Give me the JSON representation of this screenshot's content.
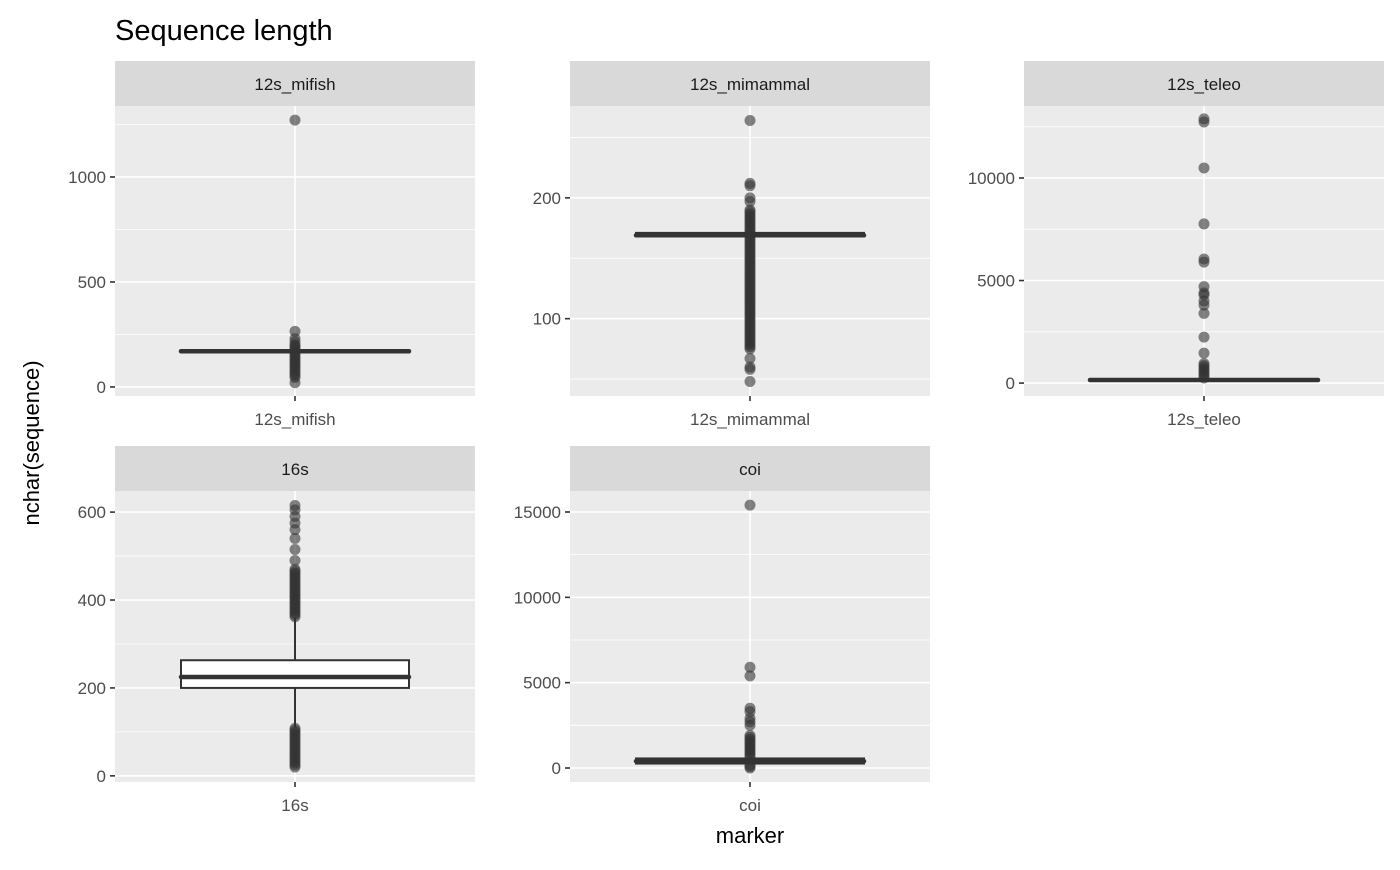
{
  "chart_data": {
    "type": "boxplot",
    "title": "Sequence length",
    "xlabel": "marker",
    "ylabel": "nchar(sequence)",
    "facet_scales": "free",
    "grid": true,
    "colors": {
      "panel": "#ebebeb",
      "strip": "#d9d9d9",
      "grid": "#ffffff",
      "box": "#333333",
      "point": "#333333"
    },
    "panels": [
      {
        "strip": "12s_mifish",
        "category": "12s_mifish",
        "ylim": [
          -43,
          1338
        ],
        "y_ticks": [
          0,
          500,
          1000
        ],
        "y_minor": [
          250,
          750,
          1250
        ],
        "q1": 165,
        "median": 170,
        "q3": 173,
        "whisker_low": 160,
        "whisker_high": 180,
        "outliers": [
          1271,
          265,
          230,
          215,
          200,
          20
        ],
        "outlier_ranges": [
          [
            45,
            195
          ]
        ]
      },
      {
        "strip": "12s_mimammal",
        "category": "12s_mimammal",
        "ylim": [
          36,
          276
        ],
        "y_ticks": [
          100,
          200
        ],
        "y_minor": [
          50,
          150,
          250
        ],
        "q1": 168,
        "median": 169,
        "q3": 171,
        "whisker_low": 166,
        "whisker_high": 172,
        "outliers": [
          264,
          212,
          210,
          200,
          197,
          67,
          60,
          58,
          48
        ],
        "outlier_ranges": [
          [
            75,
            190
          ]
        ]
      },
      {
        "strip": "12s_teleo",
        "category": "12s_teleo",
        "ylim": [
          -630,
          13510
        ],
        "y_ticks": [
          0,
          5000,
          10000
        ],
        "y_minor": [
          2500,
          7500,
          12500
        ],
        "q1": 120,
        "median": 150,
        "q3": 170,
        "whisker_low": 90,
        "whisker_high": 230,
        "outliers": [
          12880,
          12730,
          10490,
          7760,
          6050,
          5900,
          4700,
          4400,
          4300,
          4000,
          3800,
          3400,
          2240,
          1460
        ],
        "outlier_ranges": [
          [
            250,
            950
          ]
        ]
      },
      {
        "strip": "16s",
        "category": "16s",
        "ylim": [
          -14,
          648
        ],
        "y_ticks": [
          0,
          200,
          400,
          600
        ],
        "y_minor": [
          100,
          300,
          500
        ],
        "q1": 200,
        "median": 225,
        "q3": 263,
        "whisker_low": 110,
        "whisker_high": 360,
        "outliers": [
          615,
          605,
          590,
          575,
          560,
          540,
          515,
          490
        ],
        "outlier_ranges": [
          [
            362,
            470
          ],
          [
            20,
            108
          ]
        ]
      },
      {
        "strip": "coi",
        "category": "coi",
        "ylim": [
          -820,
          16230
        ],
        "y_ticks": [
          0,
          5000,
          10000,
          15000
        ],
        "y_minor": [
          2500,
          7500,
          12500
        ],
        "q1": 260,
        "median": 400,
        "q3": 560,
        "whisker_low": 200,
        "whisker_high": 600,
        "outliers": [
          15400,
          5900,
          5400,
          3500,
          3300,
          2900,
          2700,
          2500
        ],
        "outlier_ranges": [
          [
            650,
            1900
          ],
          [
            0,
            180
          ]
        ]
      }
    ]
  }
}
